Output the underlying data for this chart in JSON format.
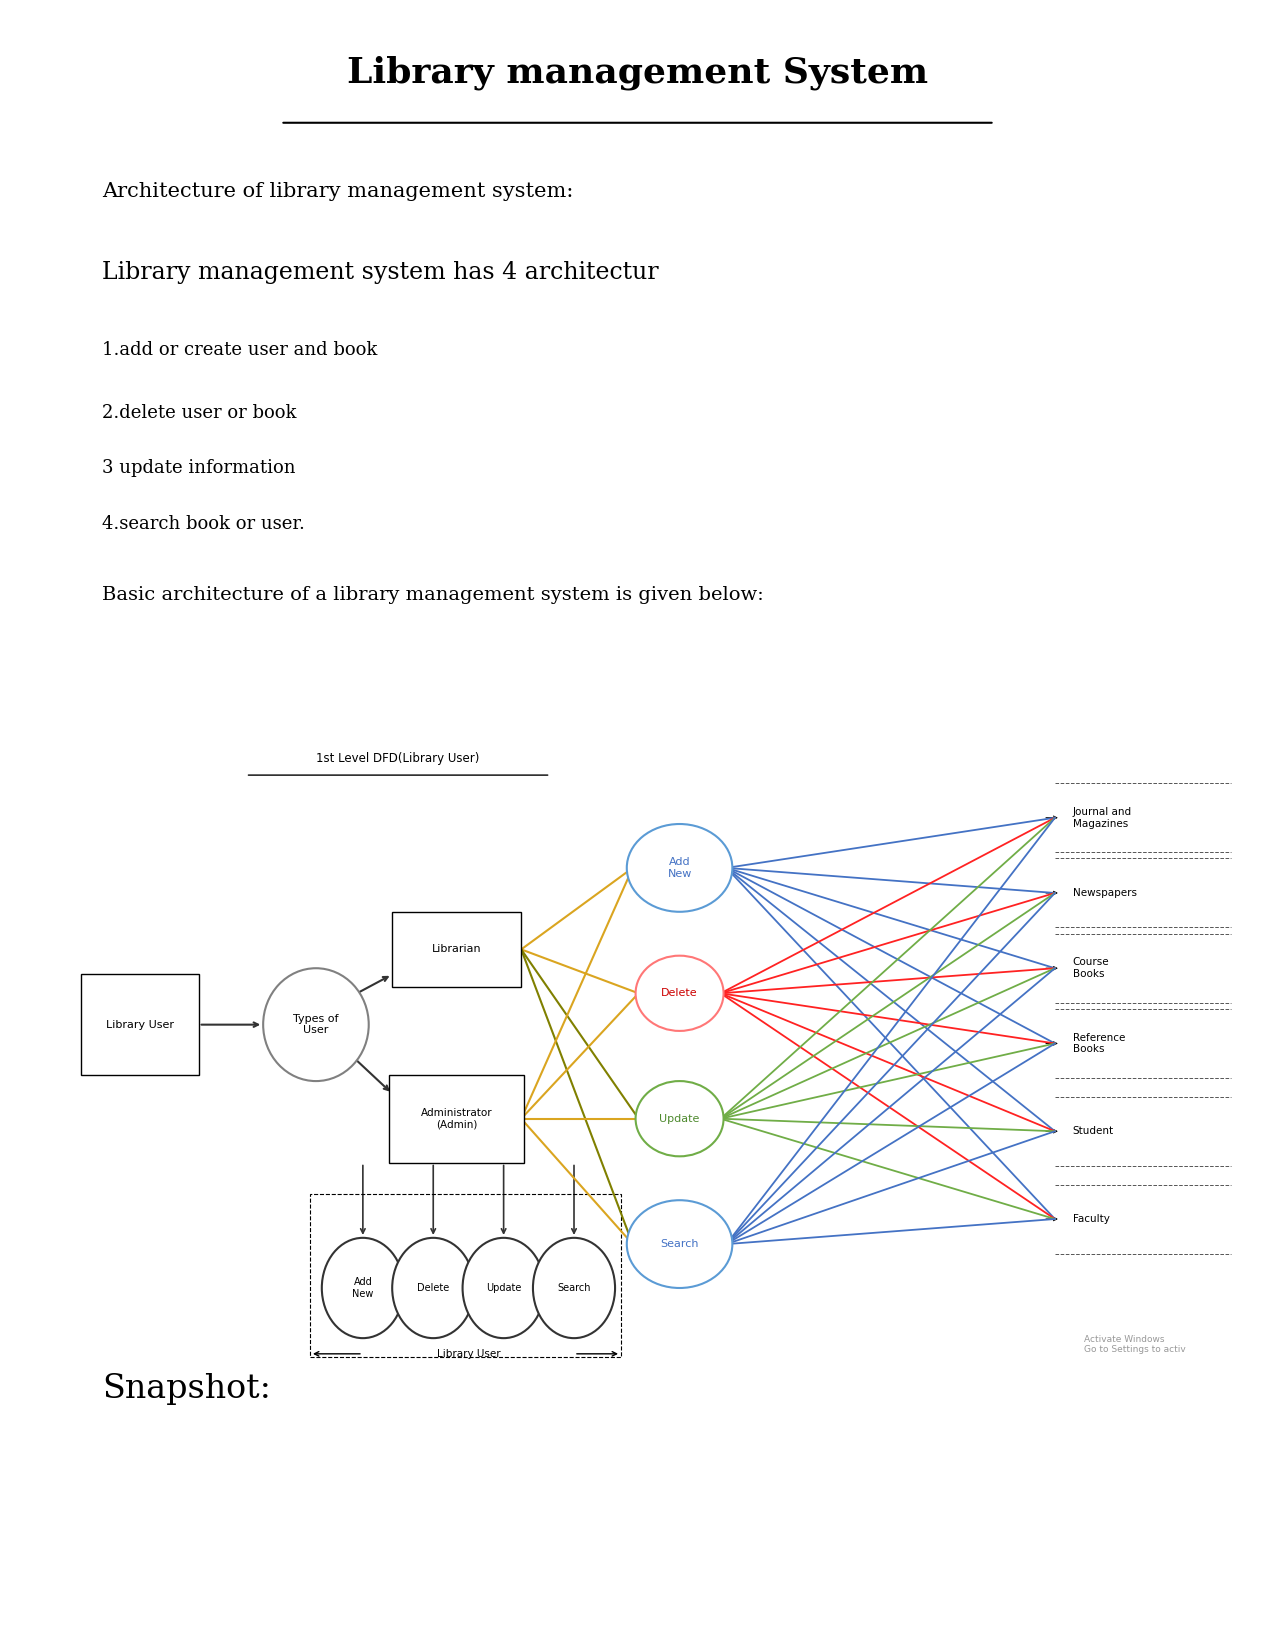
{
  "title": "Library management System",
  "subtitle1": "Architecture of library management system:",
  "subtitle2": "Library management system has 4 architectur",
  "bullets": [
    "1.add or create user and book",
    "2.delete user or book",
    "3 update information",
    "4.search book or user.",
    "Basic architecture of a library management system is given below:"
  ],
  "dfd_title": "1st Level DFD(Library User)",
  "snapshot_title": "Snapshot:",
  "bg_color": "#ffffff",
  "text_color": "#000000",
  "resources": [
    {
      "label": "Journal and\nMagazines"
    },
    {
      "label": "Newspapers"
    },
    {
      "label": "Course\nBooks"
    },
    {
      "label": "Reference\nBooks"
    },
    {
      "label": "Student"
    },
    {
      "label": "Faculty"
    }
  ],
  "yellow": "#DAA520",
  "olive": "#808000",
  "blue": "#4472C4",
  "red": "#FF2222",
  "green": "#70AD47",
  "darkgray": "#333333"
}
